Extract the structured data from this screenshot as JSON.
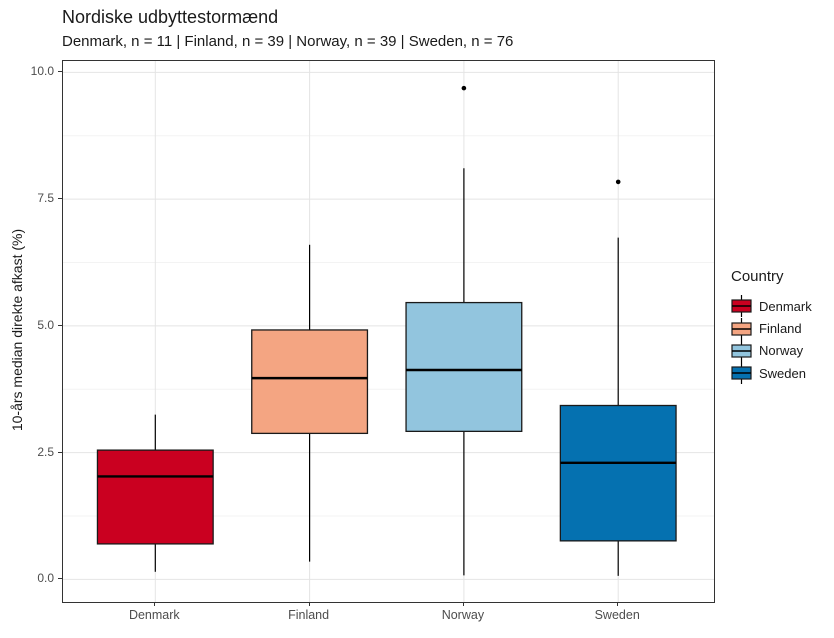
{
  "title": "Nordiske udbyttestormænd",
  "subtitle": "Denmark, n = 11 | Finland, n = 39 | Norway, n = 39 | Sweden, n = 76",
  "y_axis": {
    "label": "10-års median direkte afkast (%)",
    "tick_labels": [
      "0.0",
      "2.5",
      "5.0",
      "7.5",
      "10.0"
    ],
    "tick_values": [
      0,
      2.5,
      5,
      7.5,
      10
    ],
    "minor_tick_values": [
      1.25,
      3.75,
      6.25,
      8.75
    ],
    "range": [
      0,
      10
    ]
  },
  "x_axis": {
    "categories": [
      "Denmark",
      "Finland",
      "Norway",
      "Sweden"
    ]
  },
  "legend": {
    "title": "Country",
    "items": [
      {
        "label": "Denmark",
        "color": "#CA0020"
      },
      {
        "label": "Finland",
        "color": "#F4A582"
      },
      {
        "label": "Norway",
        "color": "#92C5DE"
      },
      {
        "label": "Sweden",
        "color": "#0571B0"
      }
    ]
  },
  "chart_data": {
    "type": "boxplot",
    "title": "Nordiske udbyttestormænd",
    "subtitle": "Denmark, n = 11 | Finland, n = 39 | Norway, n = 39 | Sweden, n = 76",
    "xlabel": "",
    "ylabel": "10-års median direkte afkast (%)",
    "ylim": [
      0,
      10
    ],
    "grid": true,
    "legend_position": "right",
    "categories": [
      "Denmark",
      "Finland",
      "Norway",
      "Sweden"
    ],
    "sample_sizes": [
      11,
      39,
      39,
      76
    ],
    "series": [
      {
        "name": "Denmark",
        "color": "#CA0020",
        "whisker_low": 0.15,
        "q1": 0.7,
        "median": 2.03,
        "q3": 2.55,
        "whisker_high": 3.25,
        "outliers": []
      },
      {
        "name": "Finland",
        "color": "#F4A582",
        "whisker_low": 0.35,
        "q1": 2.88,
        "median": 3.97,
        "q3": 4.92,
        "whisker_high": 6.6,
        "outliers": []
      },
      {
        "name": "Norway",
        "color": "#92C5DE",
        "whisker_low": 0.08,
        "q1": 2.92,
        "median": 4.13,
        "q3": 5.46,
        "whisker_high": 8.11,
        "outliers": [
          9.69
        ]
      },
      {
        "name": "Sweden",
        "color": "#0571B0",
        "whisker_low": 0.07,
        "q1": 0.76,
        "median": 2.3,
        "q3": 3.43,
        "whisker_high": 6.74,
        "outliers": [
          7.84
        ]
      }
    ]
  }
}
